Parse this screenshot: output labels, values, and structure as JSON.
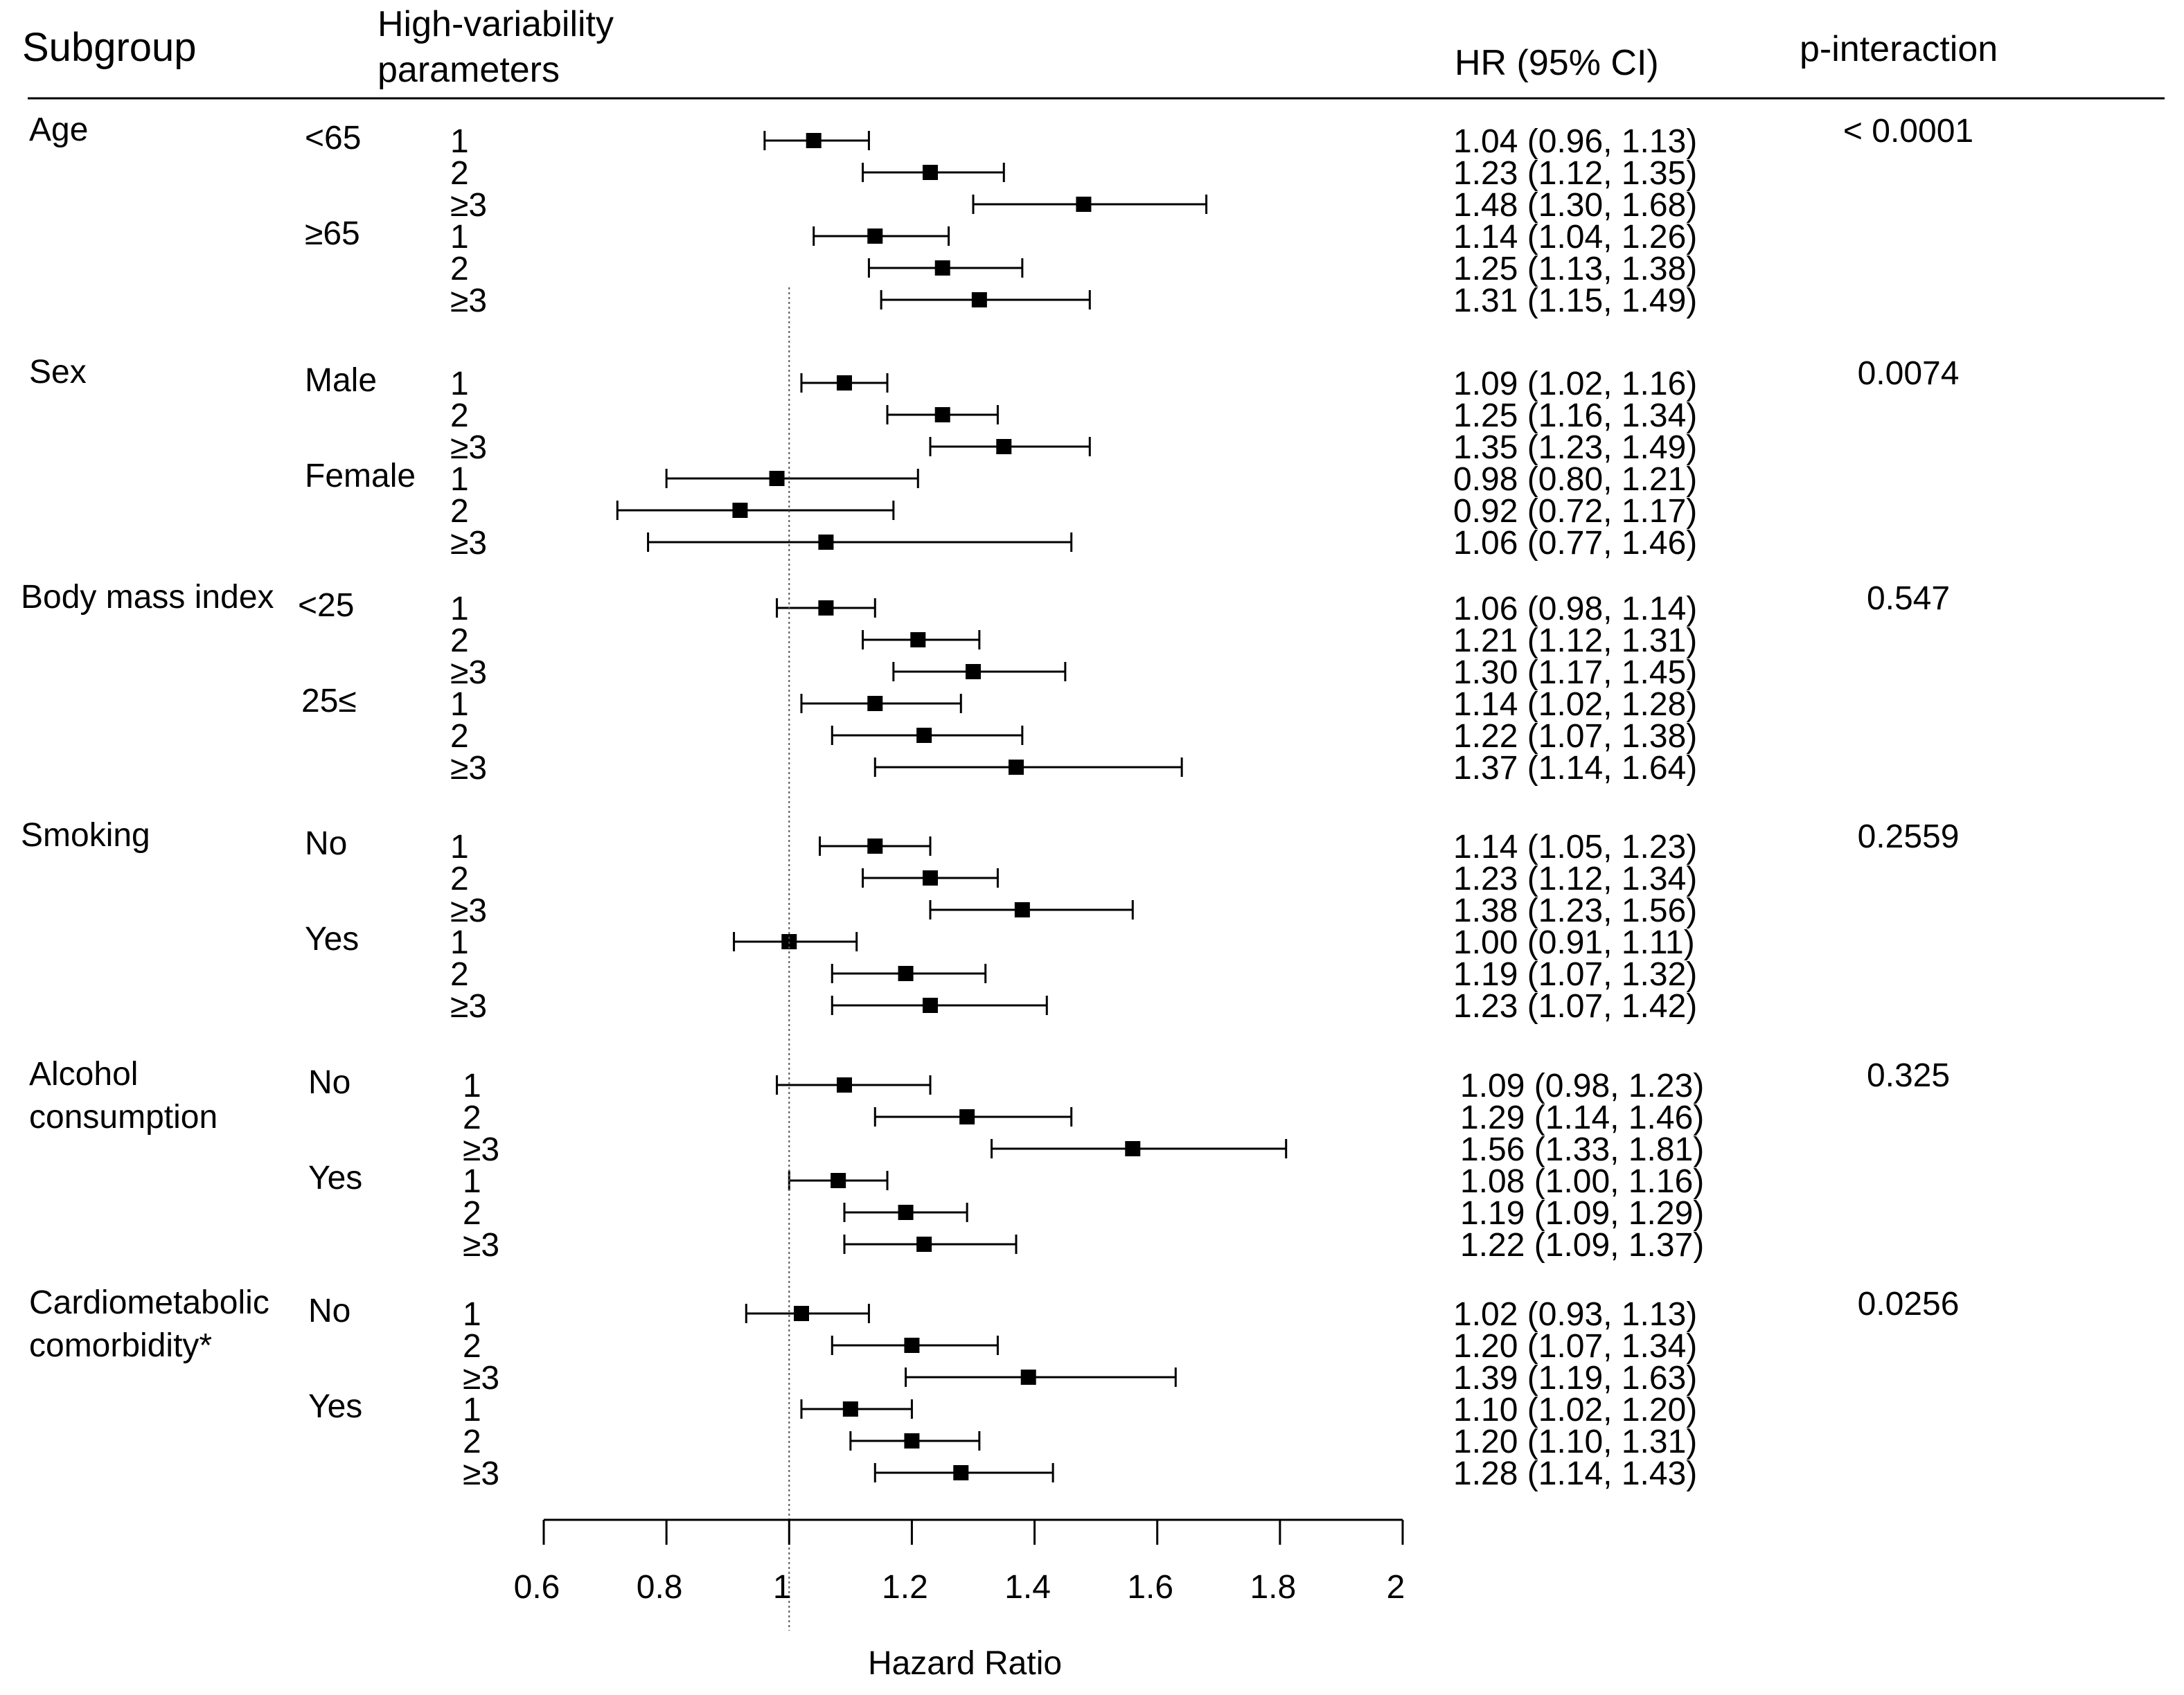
{
  "headers": {
    "subgroup": "Subgroup",
    "param_line1": "High-variability",
    "param_line2": "parameters",
    "hr": "HR (95% CI)",
    "pint": "p-interaction"
  },
  "chart_data": {
    "type": "forest",
    "xlabel": "Hazard Ratio",
    "xlim": [
      0.6,
      2.0
    ],
    "xticks": [
      0.6,
      0.8,
      1,
      1.2,
      1.4,
      1.6,
      1.8,
      2
    ],
    "tick_labels": [
      "0.6",
      "0.8",
      "1",
      "1.2",
      "1.4",
      "1.6",
      "1.8",
      "2"
    ],
    "reference_line": 1,
    "groups": [
      {
        "name": "Age",
        "name_lines": [
          "Age"
        ],
        "p_interaction": "< 0.0001",
        "subgroups": [
          {
            "label": "<65",
            "rows": [
              {
                "param": "1",
                "hr": 1.04,
                "lo": 0.96,
                "hi": 1.13,
                "text": "1.04  (0.96, 1.13)"
              },
              {
                "param": "2",
                "hr": 1.23,
                "lo": 1.12,
                "hi": 1.35,
                "text": "1.23  (1.12, 1.35)"
              },
              {
                "param": "≥3",
                "hr": 1.48,
                "lo": 1.3,
                "hi": 1.68,
                "text": "1.48  (1.30, 1.68)"
              }
            ]
          },
          {
            "label": "≥65",
            "rows": [
              {
                "param": "1",
                "hr": 1.14,
                "lo": 1.04,
                "hi": 1.26,
                "text": "1.14  (1.04, 1.26)"
              },
              {
                "param": "2",
                "hr": 1.25,
                "lo": 1.13,
                "hi": 1.38,
                "text": "1.25  (1.13, 1.38)"
              },
              {
                "param": "≥3",
                "hr": 1.31,
                "lo": 1.15,
                "hi": 1.49,
                "text": "1.31  (1.15, 1.49)"
              }
            ]
          }
        ]
      },
      {
        "name": "Sex",
        "name_lines": [
          "Sex"
        ],
        "p_interaction": "0.0074",
        "subgroups": [
          {
            "label": "Male",
            "rows": [
              {
                "param": "1",
                "hr": 1.09,
                "lo": 1.02,
                "hi": 1.16,
                "text": "1.09  (1.02, 1.16)"
              },
              {
                "param": "2",
                "hr": 1.25,
                "lo": 1.16,
                "hi": 1.34,
                "text": "1.25  (1.16, 1.34)"
              },
              {
                "param": "≥3",
                "hr": 1.35,
                "lo": 1.23,
                "hi": 1.49,
                "text": "1.35  (1.23, 1.49)"
              }
            ]
          },
          {
            "label": "Female",
            "rows": [
              {
                "param": "1",
                "hr": 0.98,
                "lo": 0.8,
                "hi": 1.21,
                "text": "0.98  (0.80, 1.21)"
              },
              {
                "param": "2",
                "hr": 0.92,
                "lo": 0.72,
                "hi": 1.17,
                "text": "0.92  (0.72, 1.17)"
              },
              {
                "param": "≥3",
                "hr": 1.06,
                "lo": 0.77,
                "hi": 1.46,
                "text": "1.06  (0.77, 1.46)"
              }
            ]
          }
        ]
      },
      {
        "name": "Body mass index",
        "name_lines": [
          "Body mass index"
        ],
        "p_interaction": "0.547",
        "subgroups": [
          {
            "label": "<25",
            "rows": [
              {
                "param": "1",
                "hr": 1.06,
                "lo": 0.98,
                "hi": 1.14,
                "text": "1.06  (0.98, 1.14)"
              },
              {
                "param": "2",
                "hr": 1.21,
                "lo": 1.12,
                "hi": 1.31,
                "text": "1.21  (1.12, 1.31)"
              },
              {
                "param": "≥3",
                "hr": 1.3,
                "lo": 1.17,
                "hi": 1.45,
                "text": "1.30  (1.17, 1.45)"
              }
            ]
          },
          {
            "label": "25≤",
            "rows": [
              {
                "param": "1",
                "hr": 1.14,
                "lo": 1.02,
                "hi": 1.28,
                "text": "1.14  (1.02, 1.28)"
              },
              {
                "param": "2",
                "hr": 1.22,
                "lo": 1.07,
                "hi": 1.38,
                "text": "1.22  (1.07, 1.38)"
              },
              {
                "param": "≥3",
                "hr": 1.37,
                "lo": 1.14,
                "hi": 1.64,
                "text": "1.37  (1.14, 1.64)"
              }
            ]
          }
        ]
      },
      {
        "name": "Smoking",
        "name_lines": [
          "Smoking"
        ],
        "p_interaction": "0.2559",
        "subgroups": [
          {
            "label": "No",
            "rows": [
              {
                "param": "1",
                "hr": 1.14,
                "lo": 1.05,
                "hi": 1.23,
                "text": "1.14  (1.05, 1.23)"
              },
              {
                "param": "2",
                "hr": 1.23,
                "lo": 1.12,
                "hi": 1.34,
                "text": "1.23  (1.12, 1.34)"
              },
              {
                "param": "≥3",
                "hr": 1.38,
                "lo": 1.23,
                "hi": 1.56,
                "text": "1.38  (1.23, 1.56)"
              }
            ]
          },
          {
            "label": "Yes",
            "rows": [
              {
                "param": "1",
                "hr": 1.0,
                "lo": 0.91,
                "hi": 1.11,
                "text": "1.00  (0.91, 1.11)"
              },
              {
                "param": "2",
                "hr": 1.19,
                "lo": 1.07,
                "hi": 1.32,
                "text": "1.19  (1.07, 1.32)"
              },
              {
                "param": "≥3",
                "hr": 1.23,
                "lo": 1.07,
                "hi": 1.42,
                "text": "1.23  (1.07, 1.42)"
              }
            ]
          }
        ]
      },
      {
        "name": "Alcohol consumption",
        "name_lines": [
          "Alcohol",
          "consumption"
        ],
        "p_interaction": "0.325",
        "subgroups": [
          {
            "label": "No",
            "rows": [
              {
                "param": "1",
                "hr": 1.09,
                "lo": 0.98,
                "hi": 1.23,
                "text": "1.09  (0.98, 1.23)"
              },
              {
                "param": "2",
                "hr": 1.29,
                "lo": 1.14,
                "hi": 1.46,
                "text": "1.29  (1.14, 1.46)"
              },
              {
                "param": "≥3",
                "hr": 1.56,
                "lo": 1.33,
                "hi": 1.81,
                "text": "1.56  (1.33, 1.81)"
              }
            ]
          },
          {
            "label": "Yes",
            "rows": [
              {
                "param": "1",
                "hr": 1.08,
                "lo": 1.0,
                "hi": 1.16,
                "text": "1.08  (1.00, 1.16)"
              },
              {
                "param": "2",
                "hr": 1.19,
                "lo": 1.09,
                "hi": 1.29,
                "text": "1.19  (1.09, 1.29)"
              },
              {
                "param": "≥3",
                "hr": 1.22,
                "lo": 1.09,
                "hi": 1.37,
                "text": "1.22  (1.09, 1.37)"
              }
            ]
          }
        ]
      },
      {
        "name": "Cardiometabolic comorbidity*",
        "name_lines": [
          "Cardiometabolic",
          "comorbidity*"
        ],
        "p_interaction": "0.0256",
        "subgroups": [
          {
            "label": "No",
            "rows": [
              {
                "param": "1",
                "hr": 1.02,
                "lo": 0.93,
                "hi": 1.13,
                "text": "1.02  (0.93, 1.13)"
              },
              {
                "param": "2",
                "hr": 1.2,
                "lo": 1.07,
                "hi": 1.34,
                "text": "1.20  (1.07, 1.34)"
              },
              {
                "param": "≥3",
                "hr": 1.39,
                "lo": 1.19,
                "hi": 1.63,
                "text": "1.39  (1.19, 1.63)"
              }
            ]
          },
          {
            "label": "Yes",
            "rows": [
              {
                "param": "1",
                "hr": 1.1,
                "lo": 1.02,
                "hi": 1.2,
                "text": "1.10  (1.02, 1.20)"
              },
              {
                "param": "2",
                "hr": 1.2,
                "lo": 1.1,
                "hi": 1.31,
                "text": "1.20  (1.10, 1.31)"
              },
              {
                "param": "≥3",
                "hr": 1.28,
                "lo": 1.14,
                "hi": 1.43,
                "text": "1.28  (1.14, 1.43)"
              }
            ]
          }
        ]
      }
    ]
  }
}
